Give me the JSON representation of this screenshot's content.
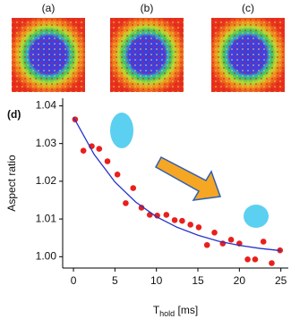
{
  "panel_labels": [
    "(a)",
    "(b)",
    "(c)"
  ],
  "chart_data": {
    "type": "scatter",
    "panel_label": "(d)",
    "ylabel": "Aspect ratio",
    "xlabel": {
      "text": "T",
      "subscript": "hold",
      "suffix": " [ms]"
    },
    "xlim": [
      -1.3,
      25.9
    ],
    "ylim": [
      0.997,
      1.042
    ],
    "xticks": [
      0,
      5,
      10,
      15,
      20,
      25
    ],
    "yticks": [
      {
        "value": 1,
        "label": "1.00"
      },
      1.01,
      1.02,
      1.03,
      1.04
    ],
    "grid": false,
    "series": [
      {
        "type": "scatter",
        "color": "#e8201c",
        "x": [
          0.2,
          1.2,
          2.2,
          3.1,
          4.1,
          5.3,
          6.3,
          7.2,
          8.2,
          9.2,
          10.1,
          11.2,
          12.2,
          13.1,
          14.1,
          15.1,
          16.1,
          17.0,
          18.0,
          19.0,
          20.0,
          21.0,
          21.9,
          22.9,
          23.9,
          24.9
        ],
        "values": [
          1.0364,
          1.0281,
          1.0293,
          1.0286,
          1.0253,
          1.0218,
          1.0142,
          1.0182,
          1.013,
          1.0111,
          1.0109,
          1.0111,
          1.0097,
          1.0095,
          1.0085,
          1.0078,
          1.0031,
          1.0064,
          1.0035,
          1.0045,
          1.0035,
          0.9993,
          0.9993,
          1.004,
          0.9983,
          1.0017
        ]
      },
      {
        "type": "line",
        "color": "#2633c8",
        "x": [
          0,
          2.5,
          5,
          7.5,
          10,
          12.5,
          15,
          17.5,
          20,
          22.5,
          25
        ],
        "values": [
          1.037,
          1.0271,
          1.0198,
          1.0145,
          1.0106,
          1.0078,
          1.0057,
          1.0041,
          1.003,
          1.0022,
          1.0016
        ]
      }
    ]
  }
}
